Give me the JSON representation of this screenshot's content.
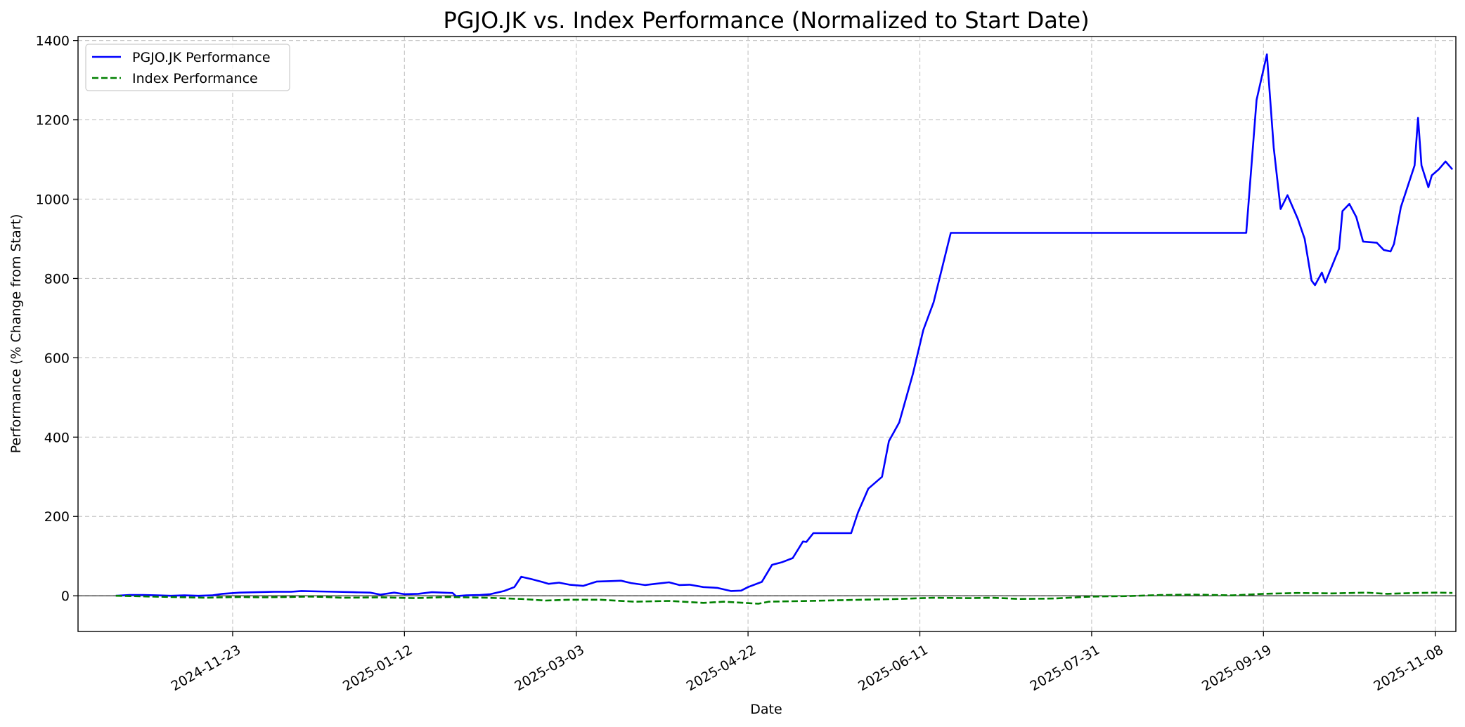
{
  "chart_data": {
    "type": "line",
    "title": "PGJO.JK vs. Index Performance (Normalized to Start Date)",
    "xlabel": "Date",
    "ylabel": "Performance (% Change from Start)",
    "xlim": [
      "2024-10-09",
      "2025-11-14"
    ],
    "ylim": [
      -90,
      1410
    ],
    "x_ticks": [
      "2024-11-23",
      "2025-01-12",
      "2025-03-03",
      "2025-04-22",
      "2025-06-11",
      "2025-07-31",
      "2025-09-19",
      "2025-11-08"
    ],
    "y_ticks": [
      0,
      200,
      400,
      600,
      800,
      1000,
      1200,
      1400
    ],
    "grid": true,
    "legend_position": "top-left",
    "zero_line": true,
    "series": [
      {
        "name": "PGJO.JK Performance",
        "color": "#0000ff",
        "style": "solid",
        "points": [
          [
            "2024-10-20",
            0
          ],
          [
            "2024-10-24",
            2
          ],
          [
            "2024-10-28",
            2
          ],
          [
            "2024-11-01",
            1
          ],
          [
            "2024-11-05",
            0
          ],
          [
            "2024-11-09",
            1
          ],
          [
            "2024-11-13",
            0
          ],
          [
            "2024-11-17",
            1
          ],
          [
            "2024-11-20",
            5
          ],
          [
            "2024-11-25",
            8
          ],
          [
            "2024-11-30",
            9
          ],
          [
            "2024-12-05",
            10
          ],
          [
            "2024-12-10",
            10
          ],
          [
            "2024-12-13",
            12
          ],
          [
            "2024-12-18",
            11
          ],
          [
            "2024-12-23",
            10
          ],
          [
            "2024-12-28",
            9
          ],
          [
            "2025-01-02",
            8
          ],
          [
            "2025-01-05",
            3
          ],
          [
            "2025-01-09",
            8
          ],
          [
            "2025-01-12",
            4
          ],
          [
            "2025-01-16",
            5
          ],
          [
            "2025-01-20",
            9
          ],
          [
            "2025-01-26",
            7
          ],
          [
            "2025-01-27",
            -1
          ],
          [
            "2025-01-30",
            1
          ],
          [
            "2025-02-03",
            2
          ],
          [
            "2025-02-06",
            4
          ],
          [
            "2025-02-10",
            12
          ],
          [
            "2025-02-13",
            22
          ],
          [
            "2025-02-15",
            48
          ],
          [
            "2025-02-18",
            42
          ],
          [
            "2025-02-21",
            35
          ],
          [
            "2025-02-23",
            30
          ],
          [
            "2025-02-26",
            33
          ],
          [
            "2025-03-01",
            28
          ],
          [
            "2025-03-05",
            25
          ],
          [
            "2025-03-09",
            36
          ],
          [
            "2025-03-13",
            37
          ],
          [
            "2025-03-16",
            38
          ],
          [
            "2025-03-19",
            32
          ],
          [
            "2025-03-23",
            27
          ],
          [
            "2025-03-26",
            30
          ],
          [
            "2025-03-30",
            34
          ],
          [
            "2025-04-02",
            27
          ],
          [
            "2025-04-05",
            28
          ],
          [
            "2025-04-09",
            22
          ],
          [
            "2025-04-13",
            20
          ],
          [
            "2025-04-17",
            12
          ],
          [
            "2025-04-20",
            13
          ],
          [
            "2025-04-22",
            22
          ],
          [
            "2025-04-26",
            35
          ],
          [
            "2025-04-29",
            78
          ],
          [
            "2025-05-02",
            85
          ],
          [
            "2025-05-05",
            95
          ],
          [
            "2025-05-08",
            137
          ],
          [
            "2025-05-09",
            136
          ],
          [
            "2025-05-11",
            158
          ],
          [
            "2025-05-14",
            158
          ],
          [
            "2025-05-18",
            158
          ],
          [
            "2025-05-21",
            158
          ],
          [
            "2025-05-22",
            158
          ],
          [
            "2025-05-24",
            210
          ],
          [
            "2025-05-27",
            270
          ],
          [
            "2025-05-31",
            300
          ],
          [
            "2025-06-02",
            390
          ],
          [
            "2025-06-05",
            437
          ],
          [
            "2025-06-09",
            560
          ],
          [
            "2025-06-12",
            670
          ],
          [
            "2025-06-15",
            740
          ],
          [
            "2025-06-20",
            915
          ],
          [
            "2025-07-05",
            915
          ],
          [
            "2025-08-01",
            915
          ],
          [
            "2025-09-01",
            915
          ],
          [
            "2025-09-14",
            915
          ],
          [
            "2025-09-17",
            1250
          ],
          [
            "2025-09-20",
            1365
          ],
          [
            "2025-09-22",
            1130
          ],
          [
            "2025-09-24",
            975
          ],
          [
            "2025-09-26",
            1010
          ],
          [
            "2025-09-29",
            950
          ],
          [
            "2025-10-01",
            900
          ],
          [
            "2025-10-03",
            795
          ],
          [
            "2025-10-04",
            783
          ],
          [
            "2025-10-06",
            815
          ],
          [
            "2025-10-07",
            790
          ],
          [
            "2025-10-11",
            875
          ],
          [
            "2025-10-12",
            970
          ],
          [
            "2025-10-14",
            988
          ],
          [
            "2025-10-16",
            955
          ],
          [
            "2025-10-18",
            893
          ],
          [
            "2025-10-22",
            890
          ],
          [
            "2025-10-24",
            872
          ],
          [
            "2025-10-26",
            868
          ],
          [
            "2025-10-27",
            887
          ],
          [
            "2025-10-29",
            980
          ],
          [
            "2025-11-02",
            1085
          ],
          [
            "2025-11-03",
            1205
          ],
          [
            "2025-11-04",
            1085
          ],
          [
            "2025-11-06",
            1030
          ],
          [
            "2025-11-07",
            1060
          ],
          [
            "2025-11-09",
            1075
          ],
          [
            "2025-11-11",
            1095
          ],
          [
            "2025-11-13",
            1075
          ]
        ]
      },
      {
        "name": "Index Performance",
        "color": "#008000",
        "style": "dashed",
        "points": [
          [
            "2024-10-20",
            0
          ],
          [
            "2024-10-25",
            -1
          ],
          [
            "2024-10-30",
            -2
          ],
          [
            "2024-11-05",
            -3
          ],
          [
            "2024-11-10",
            -4
          ],
          [
            "2024-11-15",
            -5
          ],
          [
            "2024-11-20",
            -4
          ],
          [
            "2024-11-25",
            -3
          ],
          [
            "2024-12-01",
            -4
          ],
          [
            "2024-12-10",
            -3
          ],
          [
            "2024-12-15",
            -2
          ],
          [
            "2024-12-20",
            -3
          ],
          [
            "2024-12-25",
            -5
          ],
          [
            "2025-01-05",
            -4
          ],
          [
            "2025-01-15",
            -6
          ],
          [
            "2025-01-25",
            -3
          ],
          [
            "2025-02-05",
            -5
          ],
          [
            "2025-02-15",
            -8
          ],
          [
            "2025-02-22",
            -12
          ],
          [
            "2025-03-01",
            -10
          ],
          [
            "2025-03-10",
            -10
          ],
          [
            "2025-03-20",
            -15
          ],
          [
            "2025-03-30",
            -13
          ],
          [
            "2025-04-09",
            -18
          ],
          [
            "2025-04-15",
            -15
          ],
          [
            "2025-04-25",
            -20
          ],
          [
            "2025-04-28",
            -15
          ],
          [
            "2025-05-10",
            -13
          ],
          [
            "2025-05-25",
            -10
          ],
          [
            "2025-06-05",
            -8
          ],
          [
            "2025-06-15",
            -5
          ],
          [
            "2025-06-25",
            -6
          ],
          [
            "2025-07-02",
            -5
          ],
          [
            "2025-07-10",
            -8
          ],
          [
            "2025-07-20",
            -7
          ],
          [
            "2025-07-31",
            -2
          ],
          [
            "2025-08-10",
            -1
          ],
          [
            "2025-08-20",
            2
          ],
          [
            "2025-08-30",
            3
          ],
          [
            "2025-09-10",
            1
          ],
          [
            "2025-09-19",
            5
          ],
          [
            "2025-09-29",
            7
          ],
          [
            "2025-10-09",
            6
          ],
          [
            "2025-10-19",
            8
          ],
          [
            "2025-10-25",
            5
          ],
          [
            "2025-11-02",
            7
          ],
          [
            "2025-11-09",
            8
          ],
          [
            "2025-11-13",
            7
          ]
        ]
      }
    ]
  }
}
